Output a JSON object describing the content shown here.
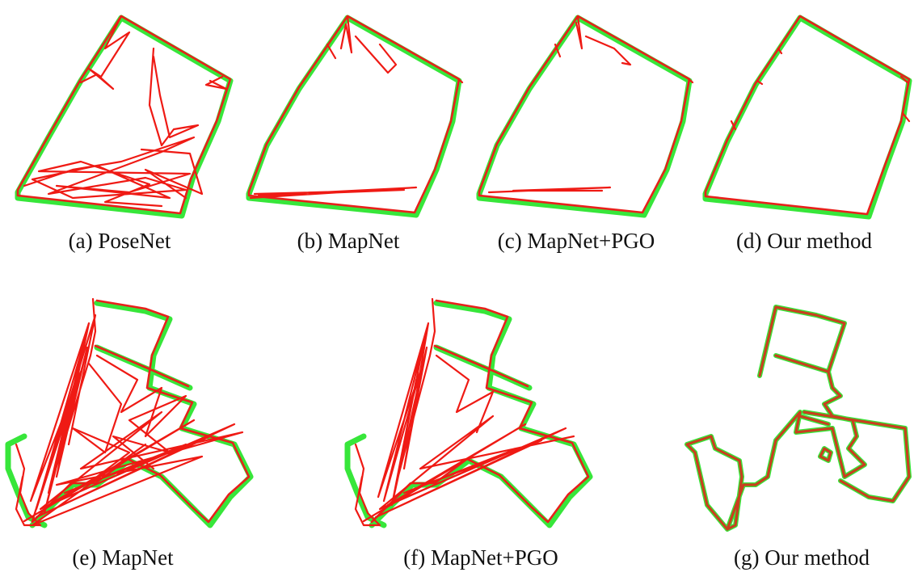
{
  "figure": {
    "panels": [
      {
        "id": "a",
        "caption": "(a) PoseNet"
      },
      {
        "id": "b",
        "caption": "(b) MapNet"
      },
      {
        "id": "c",
        "caption": "(c) MapNet+PGO"
      },
      {
        "id": "d",
        "caption": "(d) Our method"
      },
      {
        "id": "e",
        "caption": "(e) MapNet"
      },
      {
        "id": "f",
        "caption": "(f) MapNet+PGO"
      },
      {
        "id": "g",
        "caption": "(g) Our method"
      }
    ],
    "colors": {
      "ground_truth": "#37e63a",
      "estimate": "#e8201b"
    }
  }
}
